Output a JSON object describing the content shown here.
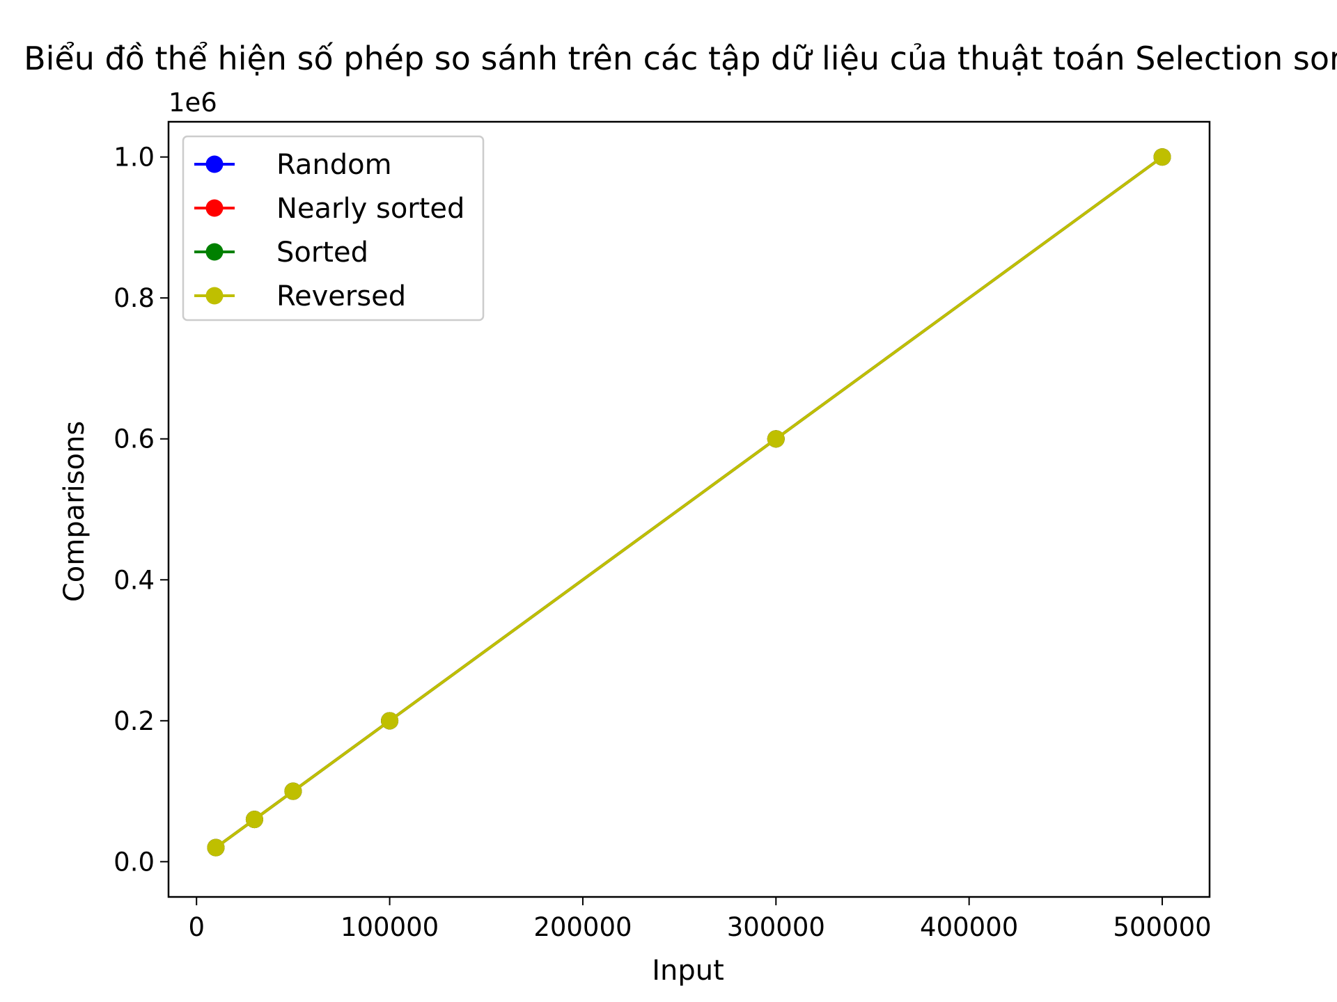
{
  "chart_data": {
    "type": "line",
    "title": "Biểu đồ thể hiện số phép so sánh trên các tập dữ liệu của thuật toán Selection sort",
    "xlabel": "Input",
    "ylabel": "Comparisons",
    "y_offset_label": "1e6",
    "x": [
      10000,
      30000,
      50000,
      100000,
      300000,
      500000
    ],
    "series": [
      {
        "name": "Random",
        "color": "#0000ff",
        "values": [
          20000,
          60000,
          100000,
          200000,
          600000,
          1000000
        ]
      },
      {
        "name": "Nearly sorted",
        "color": "#ff0000",
        "values": [
          20000,
          60000,
          100000,
          200000,
          600000,
          1000000
        ]
      },
      {
        "name": "Sorted",
        "color": "#008000",
        "values": [
          20000,
          60000,
          100000,
          200000,
          600000,
          1000000
        ]
      },
      {
        "name": "Reversed",
        "color": "#bfbf00",
        "values": [
          20000,
          60000,
          100000,
          200000,
          600000,
          1000000
        ]
      }
    ],
    "xlim": [
      -14500,
      524500
    ],
    "ylim": [
      -50000,
      1050000
    ],
    "x_ticks": [
      {
        "value": 0,
        "label": "0"
      },
      {
        "value": 100000,
        "label": "100000"
      },
      {
        "value": 200000,
        "label": "200000"
      },
      {
        "value": 300000,
        "label": "300000"
      },
      {
        "value": 400000,
        "label": "400000"
      },
      {
        "value": 500000,
        "label": "500000"
      }
    ],
    "y_ticks": [
      {
        "value": 0,
        "label": "0.0"
      },
      {
        "value": 200000,
        "label": "0.2"
      },
      {
        "value": 400000,
        "label": "0.4"
      },
      {
        "value": 600000,
        "label": "0.6"
      },
      {
        "value": 800000,
        "label": "0.8"
      },
      {
        "value": 1000000,
        "label": "1.0"
      }
    ],
    "grid": false,
    "legend_position": "top-left"
  }
}
